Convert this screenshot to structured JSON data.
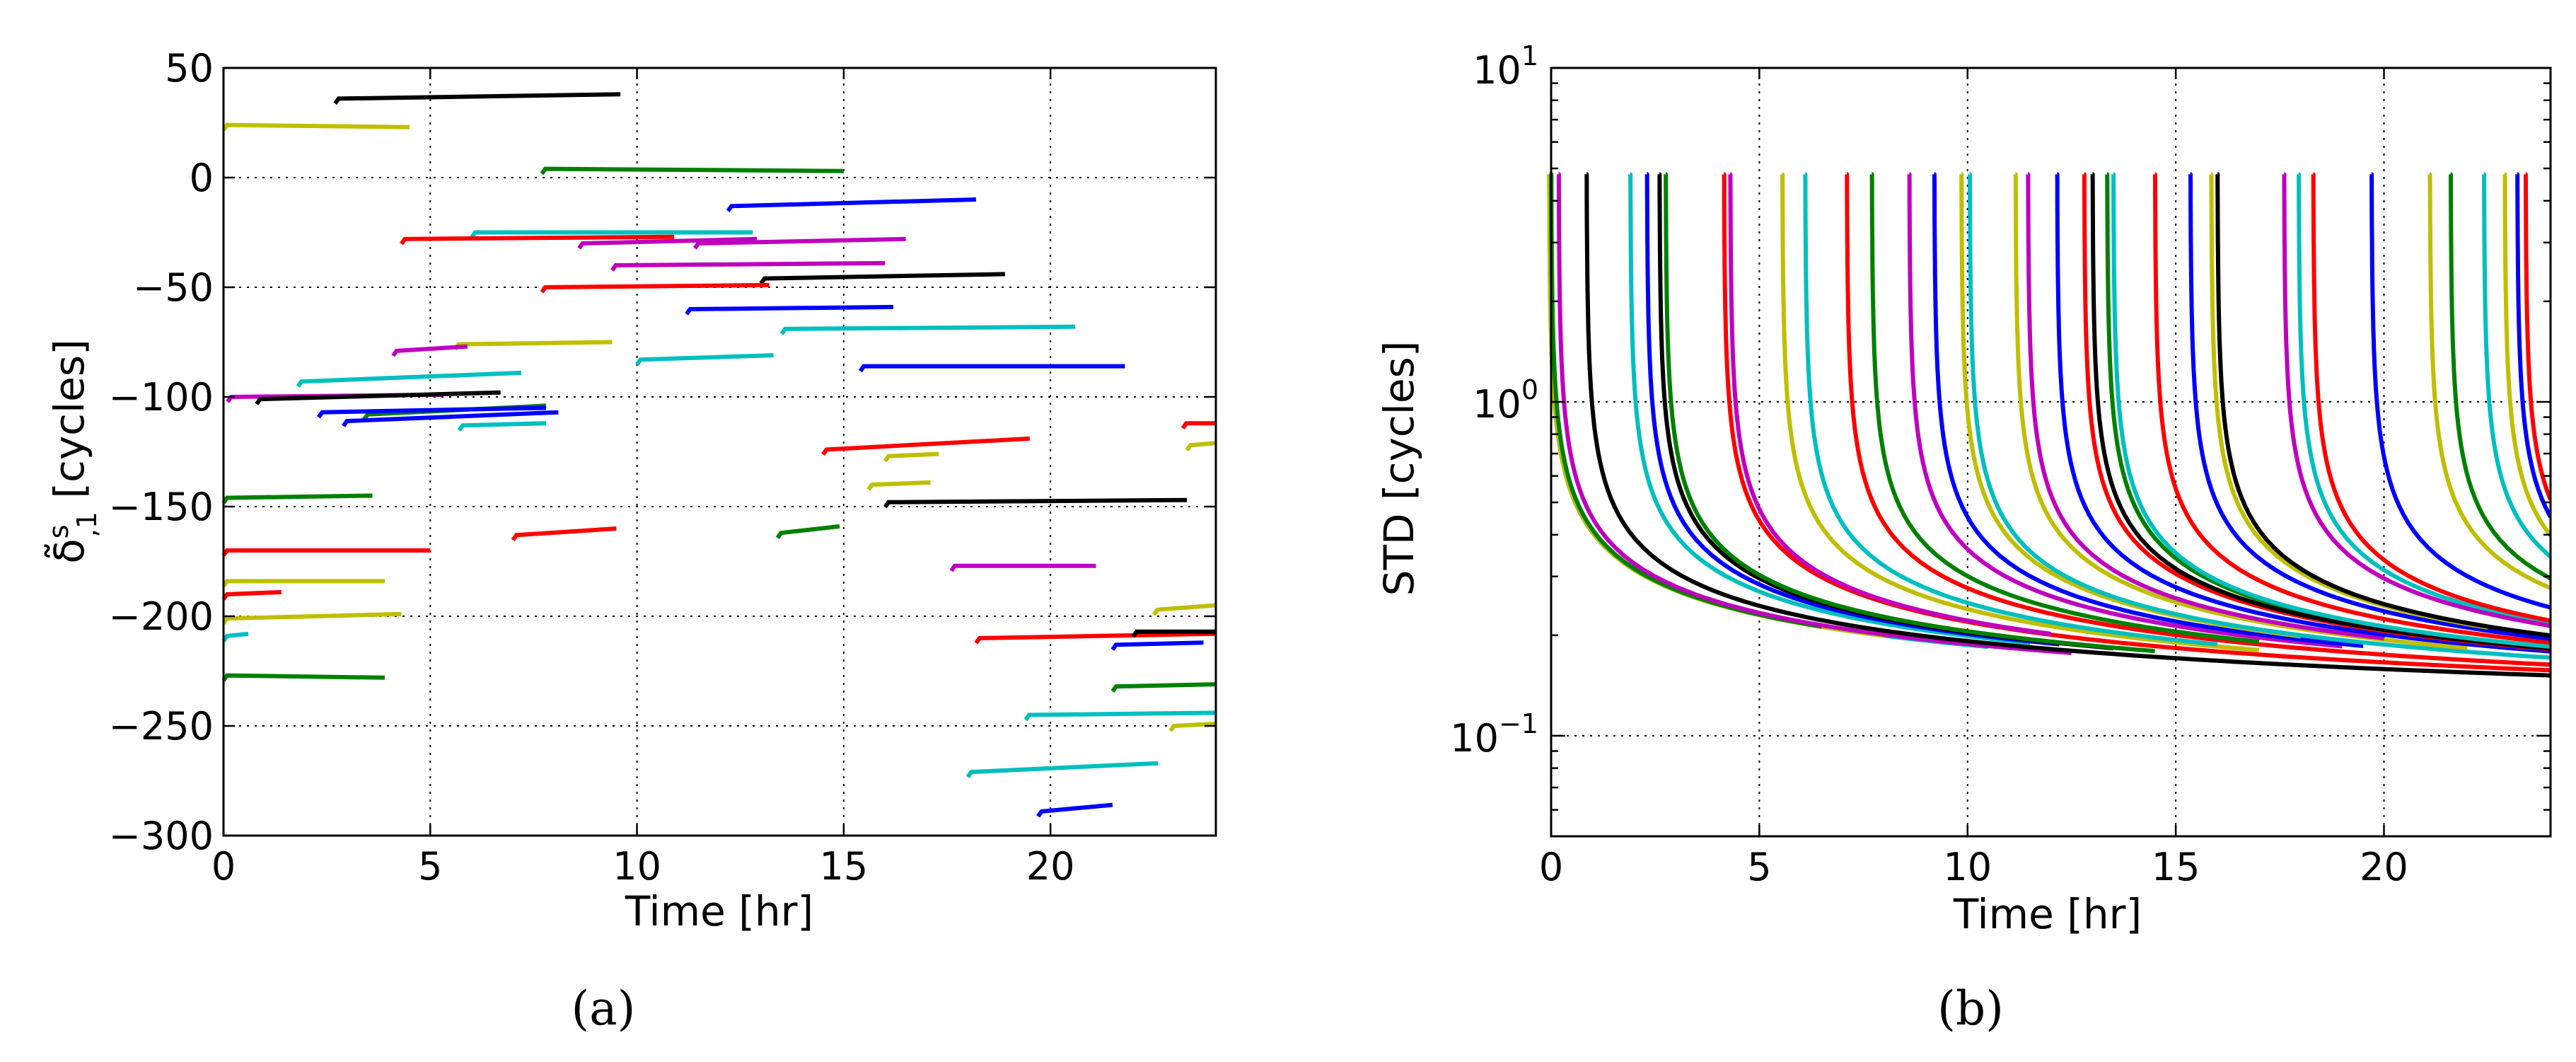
{
  "palette": {
    "b": "#0000ff",
    "g": "#008000",
    "r": "#ff0000",
    "c": "#00bfbf",
    "m": "#bf00bf",
    "y": "#bfbf00",
    "k": "#000000"
  },
  "chart_data": [
    {
      "type": "line",
      "panel_label": "(a)",
      "xlabel": "Time [hr]",
      "ylabel": "δ̃^s_,1 [cycles]",
      "ylabel_main": "δ̃",
      "ylabel_sup": "s",
      "ylabel_sub": ",1",
      "ylabel_unit": " [cycles]",
      "xlim": [
        0,
        24
      ],
      "ylim": [
        -300,
        50
      ],
      "grid": true,
      "xticks": [
        0,
        5,
        10,
        15,
        20
      ],
      "xtick_labels": [
        "0",
        "5",
        "10",
        "15",
        "20"
      ],
      "yticks": [
        50,
        0,
        -50,
        -100,
        -150,
        -200,
        -250,
        -300
      ],
      "ytick_labels": [
        "50",
        "0",
        "−50",
        "−100",
        "−150",
        "−200",
        "−250",
        "−300"
      ],
      "series": [
        {
          "color": "k",
          "x0": 2.7,
          "x1": 9.6,
          "y0": 36,
          "y1": 38
        },
        {
          "color": "y",
          "x0": 0.0,
          "x1": 4.5,
          "y0": 24,
          "y1": 23
        },
        {
          "color": "g",
          "x0": 7.7,
          "x1": 15.0,
          "y0": 4,
          "y1": 3
        },
        {
          "color": "b",
          "x0": 12.2,
          "x1": 18.2,
          "y0": -13,
          "y1": -10
        },
        {
          "color": "c",
          "x0": 6.0,
          "x1": 12.8,
          "y0": -25,
          "y1": -25
        },
        {
          "color": "r",
          "x0": 4.3,
          "x1": 10.9,
          "y0": -28,
          "y1": -27
        },
        {
          "color": "m",
          "x0": 8.6,
          "x1": 12.9,
          "y0": -30,
          "y1": -28
        },
        {
          "color": "m",
          "x0": 11.4,
          "x1": 16.5,
          "y0": -30,
          "y1": -28
        },
        {
          "color": "m",
          "x0": 9.4,
          "x1": 16.0,
          "y0": -40,
          "y1": -39
        },
        {
          "color": "k",
          "x0": 13.0,
          "x1": 18.9,
          "y0": -46,
          "y1": -44
        },
        {
          "color": "r",
          "x0": 7.7,
          "x1": 13.2,
          "y0": -50,
          "y1": -49
        },
        {
          "color": "b",
          "x0": 11.2,
          "x1": 16.2,
          "y0": -60,
          "y1": -59
        },
        {
          "color": "c",
          "x0": 13.5,
          "x1": 20.6,
          "y0": -69,
          "y1": -68
        },
        {
          "color": "y",
          "x0": 5.6,
          "x1": 9.4,
          "y0": -76,
          "y1": -75
        },
        {
          "color": "m",
          "x0": 4.1,
          "x1": 5.9,
          "y0": -79,
          "y1": -77
        },
        {
          "color": "c",
          "x0": 10.0,
          "x1": 13.3,
          "y0": -83,
          "y1": -81
        },
        {
          "color": "b",
          "x0": 15.4,
          "x1": 21.8,
          "y0": -86,
          "y1": -86
        },
        {
          "color": "c",
          "x0": 1.8,
          "x1": 7.2,
          "y0": -93,
          "y1": -89
        },
        {
          "color": "m",
          "x0": 0.1,
          "x1": 5.3,
          "y0": -100,
          "y1": -99
        },
        {
          "color": "k",
          "x0": 0.8,
          "x1": 6.7,
          "y0": -101,
          "y1": -98
        },
        {
          "color": "g",
          "x0": 3.4,
          "x1": 7.8,
          "y0": -108,
          "y1": -104
        },
        {
          "color": "b",
          "x0": 2.3,
          "x1": 7.8,
          "y0": -107,
          "y1": -105
        },
        {
          "color": "b",
          "x0": 2.9,
          "x1": 8.1,
          "y0": -111,
          "y1": -107
        },
        {
          "color": "c",
          "x0": 5.7,
          "x1": 7.8,
          "y0": -113,
          "y1": -112
        },
        {
          "color": "r",
          "x0": 14.5,
          "x1": 19.5,
          "y0": -124,
          "y1": -119
        },
        {
          "color": "y",
          "x0": 16.0,
          "x1": 17.3,
          "y0": -127,
          "y1": -126
        },
        {
          "color": "y",
          "x0": 15.6,
          "x1": 17.1,
          "y0": -140,
          "y1": -139
        },
        {
          "color": "k",
          "x0": 16.0,
          "x1": 23.3,
          "y0": -148,
          "y1": -147
        },
        {
          "color": "g",
          "x0": 0.0,
          "x1": 3.6,
          "y0": -146,
          "y1": -145
        },
        {
          "color": "r",
          "x0": 7.0,
          "x1": 9.5,
          "y0": -163,
          "y1": -160
        },
        {
          "color": "g",
          "x0": 13.4,
          "x1": 14.9,
          "y0": -162,
          "y1": -159
        },
        {
          "color": "r",
          "x0": 0.0,
          "x1": 5.0,
          "y0": -170,
          "y1": -170
        },
        {
          "color": "m",
          "x0": 17.6,
          "x1": 21.1,
          "y0": -177,
          "y1": -177
        },
        {
          "color": "y",
          "x0": 0.0,
          "x1": 3.9,
          "y0": -184,
          "y1": -184
        },
        {
          "color": "r",
          "x0": 0.0,
          "x1": 1.4,
          "y0": -190,
          "y1": -189
        },
        {
          "color": "y",
          "x0": 0.0,
          "x1": 4.3,
          "y0": -201,
          "y1": -199
        },
        {
          "color": "c",
          "x0": 0.0,
          "x1": 0.6,
          "y0": -209,
          "y1": -208
        },
        {
          "color": "r",
          "x0": 18.2,
          "x1": 24.0,
          "y0": -210,
          "y1": -208
        },
        {
          "color": "b",
          "x0": 21.5,
          "x1": 23.7,
          "y0": -213,
          "y1": -212
        },
        {
          "color": "g",
          "x0": 0.0,
          "x1": 3.9,
          "y0": -227,
          "y1": -228
        },
        {
          "color": "g",
          "x0": 21.5,
          "x1": 24.0,
          "y0": -232,
          "y1": -231
        },
        {
          "color": "c",
          "x0": 19.4,
          "x1": 24.0,
          "y0": -245,
          "y1": -244
        },
        {
          "color": "y",
          "x0": 22.9,
          "x1": 24.0,
          "y0": -250,
          "y1": -249
        },
        {
          "color": "c",
          "x0": 18.0,
          "x1": 22.6,
          "y0": -271,
          "y1": -267
        },
        {
          "color": "b",
          "x0": 19.7,
          "x1": 21.5,
          "y0": -289,
          "y1": -286
        },
        {
          "color": "r",
          "x0": 23.2,
          "x1": 24.0,
          "y0": -112,
          "y1": -112
        },
        {
          "color": "y",
          "x0": 23.3,
          "x1": 24.0,
          "y0": -122,
          "y1": -121
        },
        {
          "color": "y",
          "x0": 22.5,
          "x1": 24.0,
          "y0": -197,
          "y1": -195
        },
        {
          "color": "k",
          "x0": 22.0,
          "x1": 24.0,
          "y0": -207,
          "y1": -207
        }
      ]
    },
    {
      "type": "line",
      "panel_label": "(b)",
      "xlabel": "Time [hr]",
      "ylabel": "STD [cycles]",
      "xlim": [
        0,
        24
      ],
      "ylim": [
        0.05,
        10
      ],
      "yscale": "log",
      "grid": true,
      "xticks": [
        0,
        5,
        10,
        15,
        20
      ],
      "xtick_labels": [
        "0",
        "5",
        "10",
        "15",
        "20"
      ],
      "yticks": [
        10,
        1,
        0.1
      ],
      "ytick_bases": [
        "10",
        "10",
        "10"
      ],
      "ytick_exponents": [
        "1",
        "0",
        "−1"
      ],
      "curve_model": "STD(t) = 0.083 + 0.33 / sqrt(t - t0), capped at 4.8 cycles, drawn from t0 to t_end",
      "series": [
        {
          "color": "c",
          "t0": -0.05,
          "t_end": 10.5
        },
        {
          "color": "y",
          "t0": -0.05,
          "t_end": 8.0
        },
        {
          "color": "g",
          "t0": 0.0,
          "t_end": 6.5
        },
        {
          "color": "m",
          "t0": 0.18,
          "t_end": 12.5
        },
        {
          "color": "k",
          "t0": 0.85,
          "t_end": 24.0
        },
        {
          "color": "c",
          "t0": 1.9,
          "t_end": 11.5
        },
        {
          "color": "b",
          "t0": 2.3,
          "t_end": 12.2
        },
        {
          "color": "k",
          "t0": 2.6,
          "t_end": 13.5
        },
        {
          "color": "g",
          "t0": 2.75,
          "t_end": 14.5
        },
        {
          "color": "r",
          "t0": 4.15,
          "t_end": 24.0
        },
        {
          "color": "m",
          "t0": 4.3,
          "t_end": 12.0
        },
        {
          "color": "y",
          "t0": 5.55,
          "t_end": 17.0
        },
        {
          "color": "c",
          "t0": 6.1,
          "t_end": 16.0
        },
        {
          "color": "r",
          "t0": 7.1,
          "t_end": 24.0
        },
        {
          "color": "g",
          "t0": 7.7,
          "t_end": 17.0
        },
        {
          "color": "m",
          "t0": 8.6,
          "t_end": 19.0
        },
        {
          "color": "b",
          "t0": 9.2,
          "t_end": 19.5
        },
        {
          "color": "y",
          "t0": 9.85,
          "t_end": 18.0
        },
        {
          "color": "c",
          "t0": 10.05,
          "t_end": 24.0
        },
        {
          "color": "y",
          "t0": 11.15,
          "t_end": 22.0
        },
        {
          "color": "m",
          "t0": 11.45,
          "t_end": 20.0
        },
        {
          "color": "b",
          "t0": 12.15,
          "t_end": 24.0
        },
        {
          "color": "r",
          "t0": 12.8,
          "t_end": 24.0
        },
        {
          "color": "g",
          "t0": 13.35,
          "t_end": 21.0
        },
        {
          "color": "k",
          "t0": 13.0,
          "t_end": 24.0
        },
        {
          "color": "c",
          "t0": 13.5,
          "t_end": 24.0
        },
        {
          "color": "r",
          "t0": 14.5,
          "t_end": 24.0
        },
        {
          "color": "b",
          "t0": 15.35,
          "t_end": 24.0
        },
        {
          "color": "y",
          "t0": 15.85,
          "t_end": 22.5
        },
        {
          "color": "k",
          "t0": 16.0,
          "t_end": 24.0
        },
        {
          "color": "c",
          "t0": 17.95,
          "t_end": 24.0
        },
        {
          "color": "r",
          "t0": 18.3,
          "t_end": 24.0
        },
        {
          "color": "m",
          "t0": 17.6,
          "t_end": 24.0
        },
        {
          "color": "b",
          "t0": 19.7,
          "t_end": 24.0
        },
        {
          "color": "y",
          "t0": 21.1,
          "t_end": 24.0
        },
        {
          "color": "g",
          "t0": 21.6,
          "t_end": 24.0
        },
        {
          "color": "c",
          "t0": 22.4,
          "t_end": 24.0
        },
        {
          "color": "y",
          "t0": 22.9,
          "t_end": 24.0
        },
        {
          "color": "b",
          "t0": 23.2,
          "t_end": 24.0
        },
        {
          "color": "r",
          "t0": 23.4,
          "t_end": 24.0
        }
      ]
    }
  ]
}
